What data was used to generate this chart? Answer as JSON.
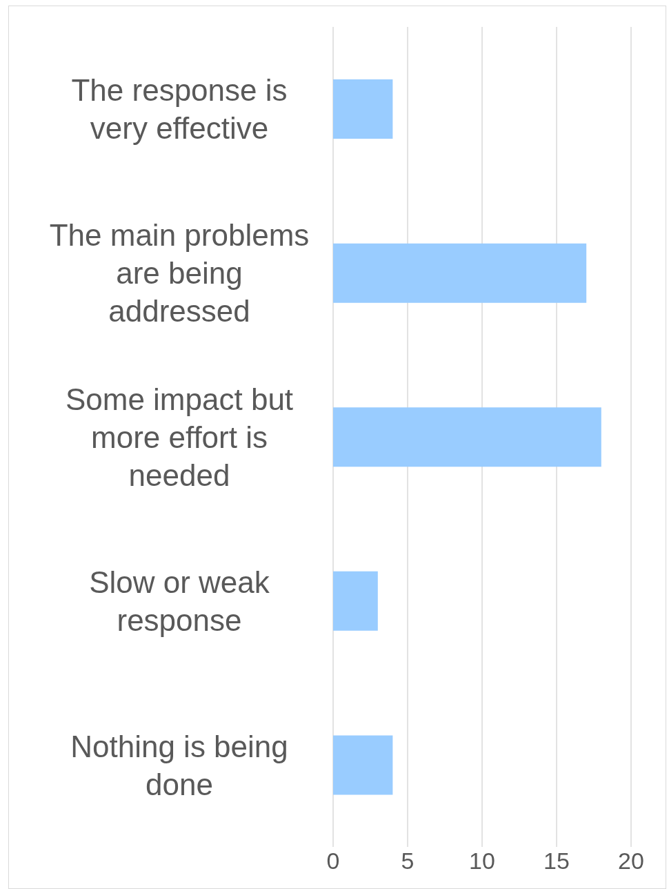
{
  "chart_data": {
    "type": "bar",
    "orientation": "horizontal",
    "categories": [
      "The response is very effective",
      "The main problems are being addressed",
      "Some impact but more effort is needed",
      "Slow or weak response",
      "Nothing is being done"
    ],
    "values": [
      4,
      17,
      18,
      3,
      4
    ],
    "color": "#99ccff",
    "xlim": [
      0,
      20
    ],
    "xticks": [
      0,
      5,
      10,
      15,
      20
    ],
    "grid": "x",
    "legend": false
  }
}
